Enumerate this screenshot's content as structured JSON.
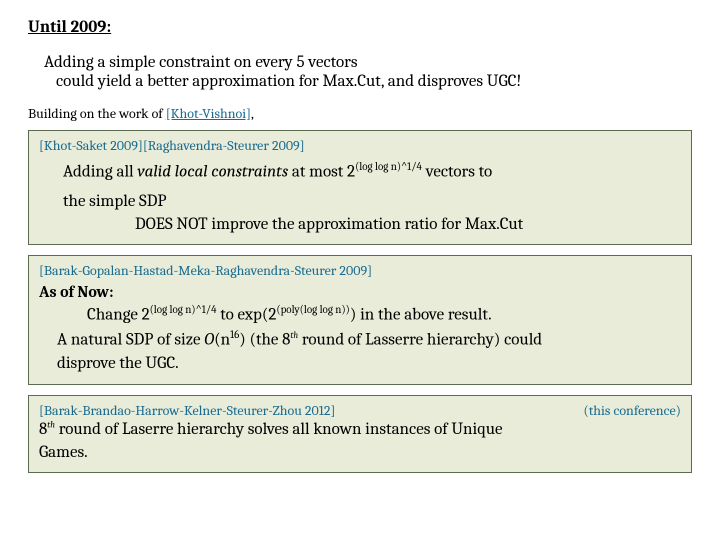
{
  "heading": "Until 2009:",
  "intro": {
    "line1": "Adding a simple constraint on every 5 vectors",
    "line2": "could yield a better approximation for Max.Cut,  and disproves UGC!"
  },
  "building": {
    "prefix": "Building on the work of ",
    "cite": "[Khot-Vishnoi]",
    "suffix": ","
  },
  "box1": {
    "cite": "[Khot-Saket 2009][Raghavendra-Steurer  2009]",
    "l1a": "Adding all ",
    "l1b": "valid local constraints",
    "l1c": " at most 2",
    "l1exp": "(log log n)^1/4",
    "l1d": " vectors to",
    "l2": "the simple SDP",
    "l3": "DOES NOT improve the approximation ratio for Max.Cut"
  },
  "box2": {
    "cite": "[Barak-Gopalan-Hastad-Meka-Raghavendra-Steurer  2009]",
    "asof": "As of Now:",
    "c1a": "Change 2",
    "c1exp": "(log log n)^1/4",
    "c1b": "  to exp(2",
    "c1exp2": "(poly(log log n))",
    "c1c": ") in the above result.",
    "n1a": "A natural SDP of size ",
    "n1o": "O",
    "n1paren1": "(n",
    "n1exp": "16",
    "n1paren2": ")  (the 8",
    "n1th": "th",
    "n1rest": " round of Lasserre hierarchy) could",
    "n2": "disprove the UGC."
  },
  "box3": {
    "cite": "[Barak-Brandao-Harrow-Kelner-Steurer-Zhou  2012]",
    "conf": "(this conference)",
    "l1a": "8",
    "l1th": "th",
    "l1b": " round of Laserre hierarchy solves all known instances of Unique",
    "l2": "Games."
  },
  "colors": {
    "box_bg": "#e8ecd9",
    "box_border": "#5a6b4f",
    "cite_color": "#1a6b8f",
    "text_color": "#000000"
  }
}
